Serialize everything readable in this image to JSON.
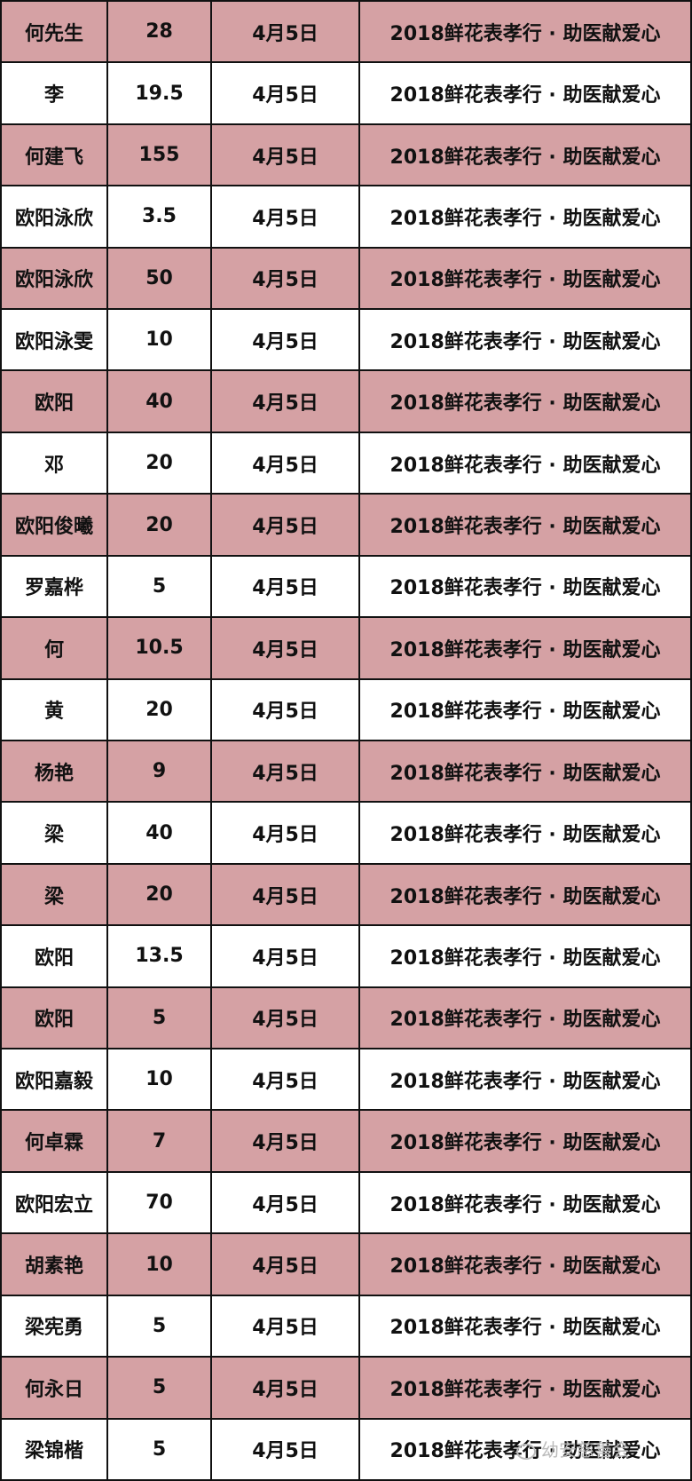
{
  "table": {
    "rows": [
      [
        "何先生",
        "28",
        "4月5日",
        "2018鲜花表孝行 · 助医献爱心"
      ],
      [
        "李",
        "19.5",
        "4月5日",
        "2018鲜花表孝行 · 助医献爱心"
      ],
      [
        "何建飞",
        "155",
        "4月5日",
        "2018鲜花表孝行 · 助医献爱心"
      ],
      [
        "欧阳泳欣",
        "3.5",
        "4月5日",
        "2018鲜花表孝行 · 助医献爱心"
      ],
      [
        "欧阳泳欣",
        "50",
        "4月5日",
        "2018鲜花表孝行 · 助医献爱心"
      ],
      [
        "欧阳泳雯",
        "10",
        "4月5日",
        "2018鲜花表孝行 · 助医献爱心"
      ],
      [
        "欧阳",
        "40",
        "4月5日",
        "2018鲜花表孝行 · 助医献爱心"
      ],
      [
        "邓",
        "20",
        "4月5日",
        "2018鲜花表孝行 · 助医献爱心"
      ],
      [
        "欧阳俊曦",
        "20",
        "4月5日",
        "2018鲜花表孝行 · 助医献爱心"
      ],
      [
        "罗嘉桦",
        "5",
        "4月5日",
        "2018鲜花表孝行 · 助医献爱心"
      ],
      [
        "何",
        "10.5",
        "4月5日",
        "2018鲜花表孝行 · 助医献爱心"
      ],
      [
        "黄",
        "20",
        "4月5日",
        "2018鲜花表孝行 · 助医献爱心"
      ],
      [
        "杨艳",
        "9",
        "4月5日",
        "2018鲜花表孝行 · 助医献爱心"
      ],
      [
        "梁",
        "40",
        "4月5日",
        "2018鲜花表孝行 · 助医献爱心"
      ],
      [
        "梁",
        "20",
        "4月5日",
        "2018鲜花表孝行 · 助医献爱心"
      ],
      [
        "欧阳",
        "13.5",
        "4月5日",
        "2018鲜花表孝行 · 助医献爱心"
      ],
      [
        "欧阳",
        "5",
        "4月5日",
        "2018鲜花表孝行 · 助医献爱心"
      ],
      [
        "欧阳嘉毅",
        "10",
        "4月5日",
        "2018鲜花表孝行 · 助医献爱心"
      ],
      [
        "何卓霖",
        "7",
        "4月5日",
        "2018鲜花表孝行 · 助医献爱心"
      ],
      [
        "欧阳宏立",
        "70",
        "4月5日",
        "2018鲜花表孝行 · 助医献爱心"
      ],
      [
        "胡素艳",
        "10",
        "4月5日",
        "2018鲜花表孝行 · 助医献爱心"
      ],
      [
        "梁宪勇",
        "5",
        "4月5日",
        "2018鲜花表孝行 · 助医献爱心"
      ],
      [
        "何永日",
        "5",
        "4月5日",
        "2018鲜花表孝行 · 助医献爱心"
      ],
      [
        "梁锦楷",
        "5",
        "4月5日",
        "2018鲜花表孝行 · 助医献爱心"
      ]
    ]
  },
  "watermark": "幼安慈善会"
}
